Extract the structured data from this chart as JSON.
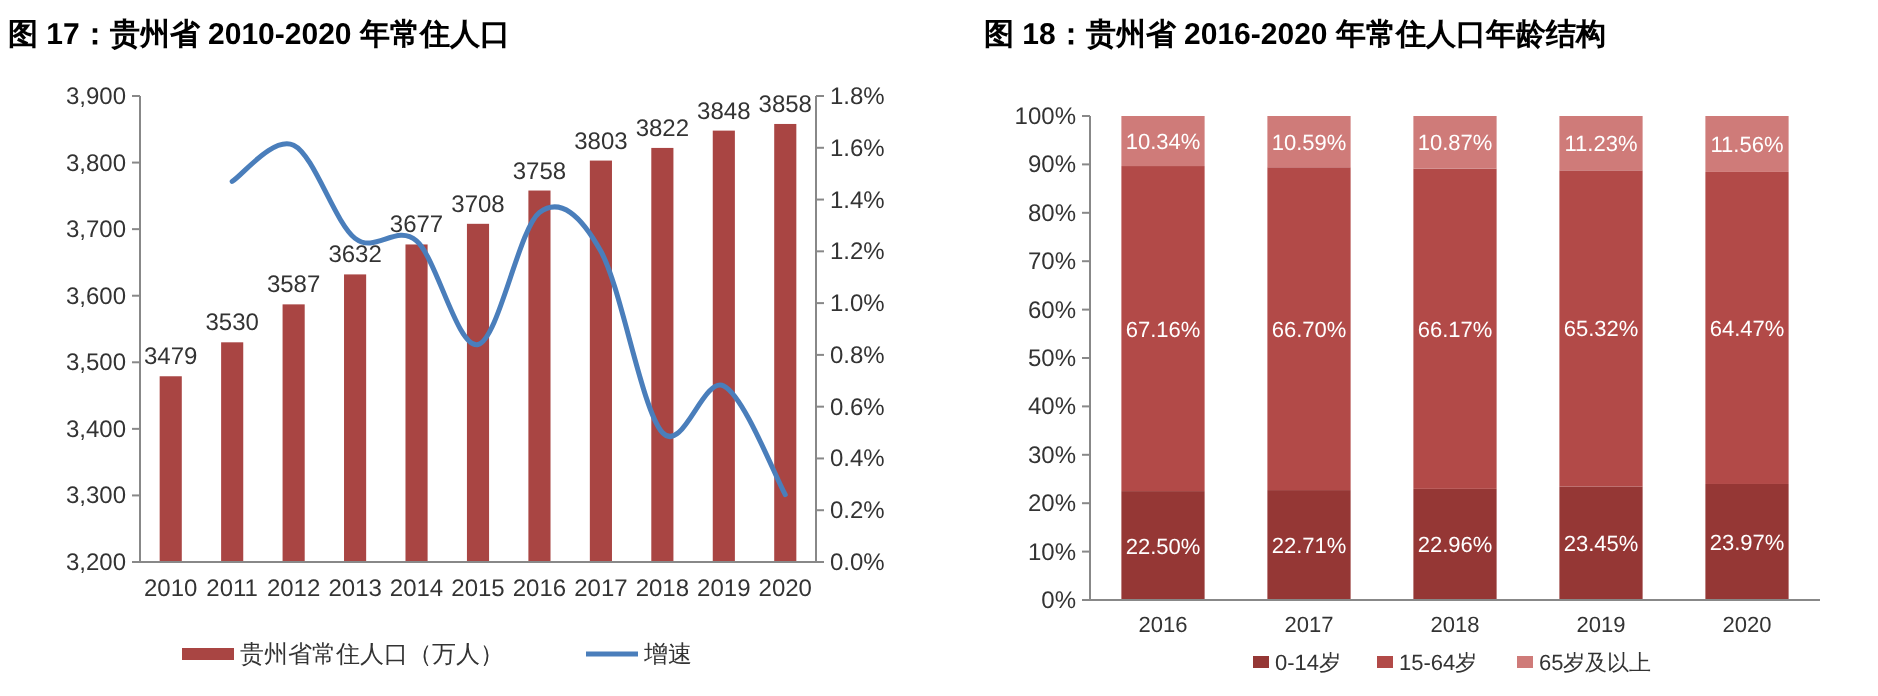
{
  "chart_data": [
    {
      "type": "bar",
      "title": "图 17：贵州省 2010-2020 年常住人口",
      "categories": [
        "2010",
        "2011",
        "2012",
        "2013",
        "2014",
        "2015",
        "2016",
        "2017",
        "2018",
        "2019",
        "2020"
      ],
      "series": [
        {
          "name": "贵州省常住人口（万人）",
          "color": "#a94543",
          "values": [
            3479,
            3530,
            3587,
            3632,
            3677,
            3708,
            3758,
            3803,
            3822,
            3848,
            3858
          ],
          "value_labels": [
            "3479",
            "3530",
            "3587",
            "3632",
            "3677",
            "3708",
            "3758",
            "3803",
            "3822",
            "3848",
            "3858"
          ]
        },
        {
          "name": "增速",
          "type": "line",
          "axis": "y2",
          "color": "#4a7ebb",
          "values": [
            null,
            1.47,
            1.61,
            1.25,
            1.24,
            0.84,
            1.35,
            1.2,
            0.5,
            0.68,
            0.26
          ]
        }
      ],
      "ylim": [
        3200,
        3900
      ],
      "yticks": [
        {
          "value": 3200,
          "label": "3,200"
        },
        {
          "value": 3300,
          "label": "3,300"
        },
        {
          "value": 3400,
          "label": "3,400"
        },
        {
          "value": 3500,
          "label": "3,500"
        },
        {
          "value": 3600,
          "label": "3,600"
        },
        {
          "value": 3700,
          "label": "3,700"
        },
        {
          "value": 3800,
          "label": "3,800"
        },
        {
          "value": 3900,
          "label": "3,900"
        }
      ],
      "y2lim": [
        0,
        1.8
      ],
      "y2ticks": [
        {
          "value": 0,
          "label": "0.0%"
        },
        {
          "value": 0.2,
          "label": "0.2%"
        },
        {
          "value": 0.4,
          "label": "0.4%"
        },
        {
          "value": 0.6,
          "label": "0.6%"
        },
        {
          "value": 0.8,
          "label": "0.8%"
        },
        {
          "value": 1.0,
          "label": "1.0%"
        },
        {
          "value": 1.2,
          "label": "1.2%"
        },
        {
          "value": 1.4,
          "label": "1.4%"
        },
        {
          "value": 1.6,
          "label": "1.6%"
        },
        {
          "value": 1.8,
          "label": "1.8%"
        }
      ],
      "grid": false,
      "legend": "bottom"
    },
    {
      "type": "bar",
      "stacked": true,
      "title": "图 18：贵州省 2016-2020 年常住人口年龄结构",
      "categories": [
        "2016",
        "2017",
        "2018",
        "2019",
        "2020"
      ],
      "series": [
        {
          "name": "0-14岁",
          "color": "#953735",
          "values": [
            22.5,
            22.71,
            22.96,
            23.45,
            23.97
          ],
          "value_labels": [
            "22.50%",
            "22.71%",
            "22.96%",
            "23.45%",
            "23.97%"
          ]
        },
        {
          "name": "15-64岁",
          "color": "#b24a48",
          "values": [
            67.16,
            66.7,
            66.17,
            65.32,
            64.47
          ],
          "value_labels": [
            "67.16%",
            "66.70%",
            "66.17%",
            "65.32%",
            "64.47%"
          ]
        },
        {
          "name": "65岁及以上",
          "color": "#cf7b79",
          "values": [
            10.34,
            10.59,
            10.87,
            11.23,
            11.56
          ],
          "value_labels": [
            "10.34%",
            "10.59%",
            "10.87%",
            "11.23%",
            "11.56%"
          ]
        }
      ],
      "ylim": [
        0,
        100
      ],
      "yticks": [
        {
          "value": 0,
          "label": "0%"
        },
        {
          "value": 10,
          "label": "10%"
        },
        {
          "value": 20,
          "label": "20%"
        },
        {
          "value": 30,
          "label": "30%"
        },
        {
          "value": 40,
          "label": "40%"
        },
        {
          "value": 50,
          "label": "50%"
        },
        {
          "value": 60,
          "label": "60%"
        },
        {
          "value": 70,
          "label": "70%"
        },
        {
          "value": 80,
          "label": "80%"
        },
        {
          "value": 90,
          "label": "90%"
        },
        {
          "value": 100,
          "label": "100%"
        }
      ],
      "grid": false,
      "legend": "bottom"
    }
  ]
}
